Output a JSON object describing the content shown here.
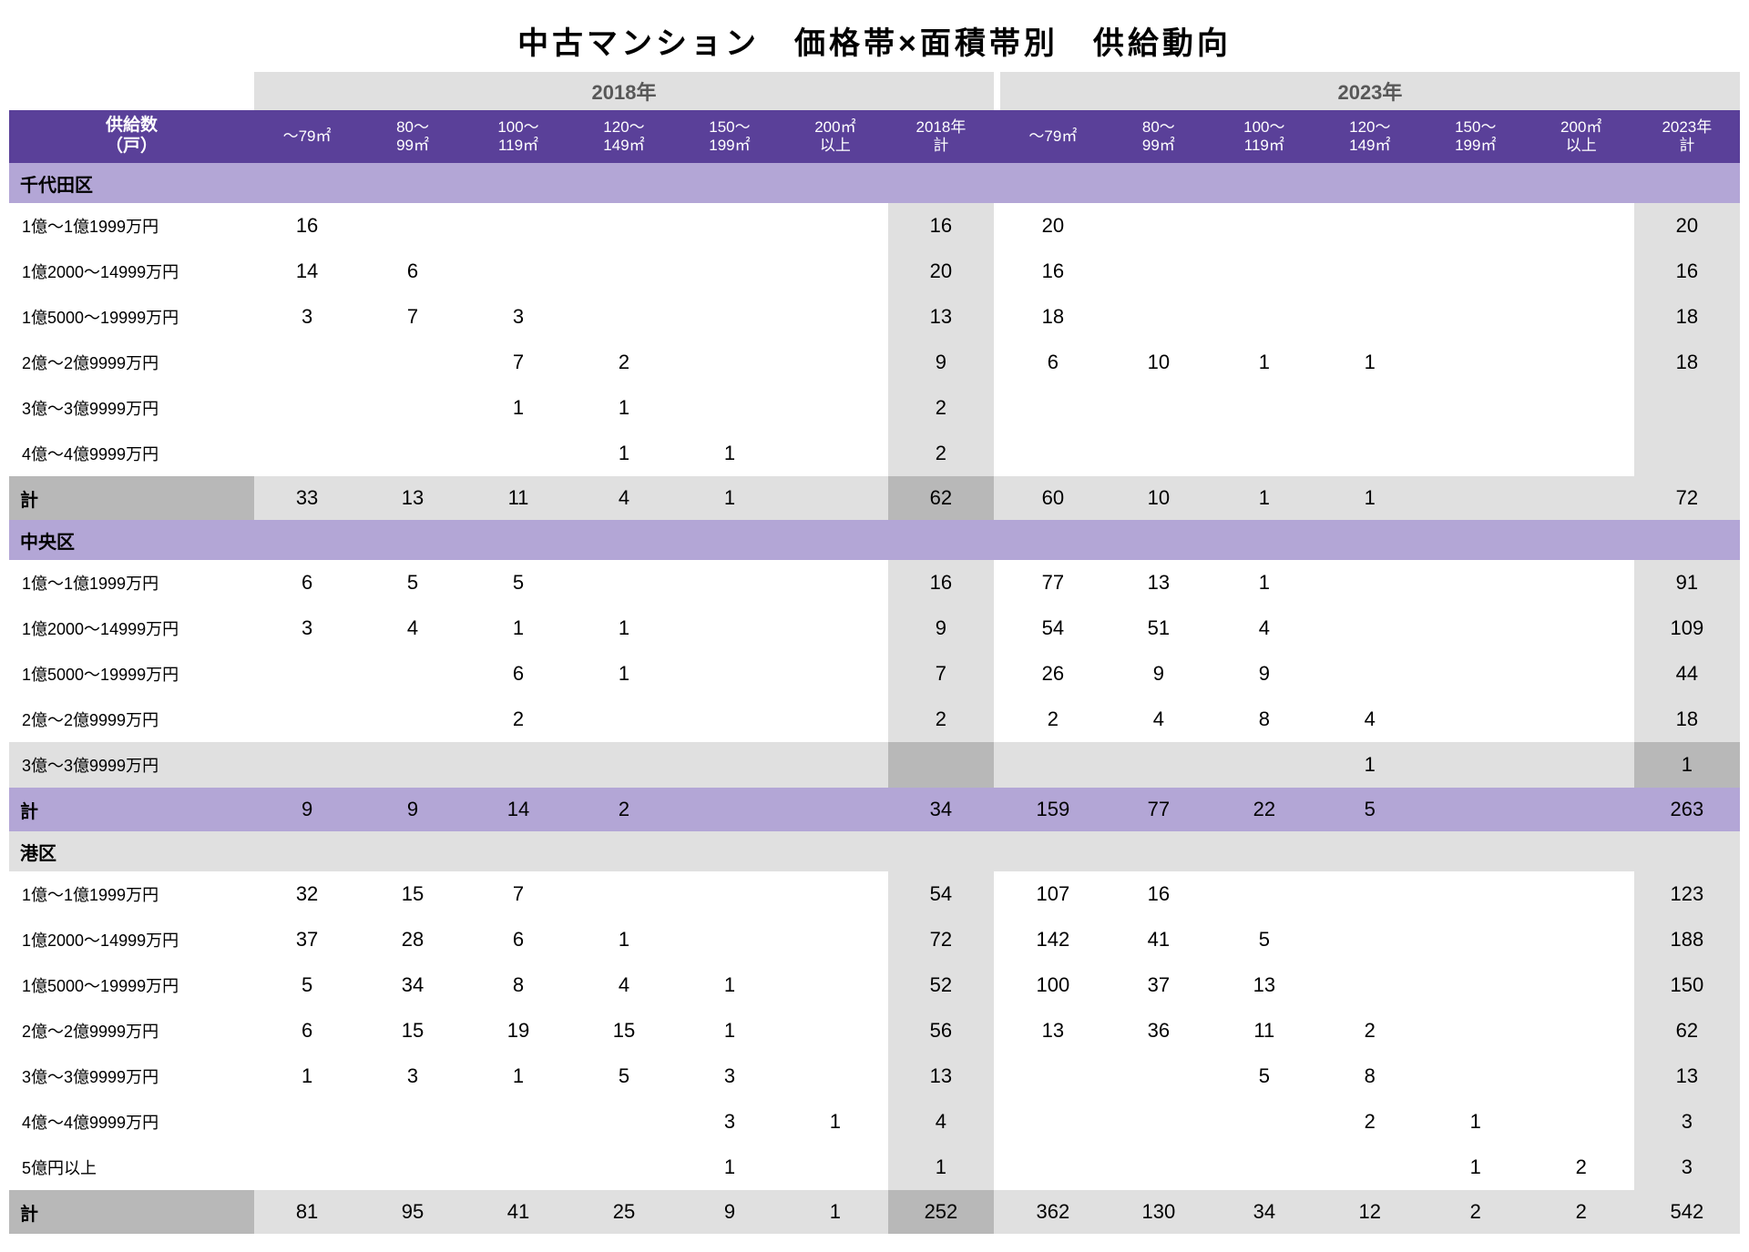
{
  "title": "中古マンション　価格帯×面積帯別　供給動向",
  "colors": {
    "header_bg": "#5a4099",
    "header_text": "#ffffff",
    "ward_bg": "#b3a6d6",
    "year_bg": "#e0e0e0",
    "subtotal_bg": "#e0e0e0",
    "total_label_bg": "#b8b8b8",
    "text": "#000000",
    "page_bg": "#ffffff"
  },
  "years": {
    "a": "2018年",
    "b": "2023年"
  },
  "header": {
    "label": "供給数\n（戸）",
    "cols_a": [
      "～79㎡",
      "80～\n99㎡",
      "100～\n119㎡",
      "120～\n149㎡",
      "150～\n199㎡",
      "200㎡\n以上",
      "2018年\n計"
    ],
    "cols_b": [
      "～79㎡",
      "80～\n99㎡",
      "100～\n119㎡",
      "120～\n149㎡",
      "150～\n199㎡",
      "200㎡\n以上",
      "2023年\n計"
    ]
  },
  "sections": [
    {
      "ward": "千代田区",
      "rows": [
        {
          "label": "1億～1億1999万円",
          "a": [
            "16",
            "",
            "",
            "",
            "",
            "",
            "16"
          ],
          "b": [
            "20",
            "",
            "",
            "",
            "",
            "",
            "20"
          ]
        },
        {
          "label": "1億2000～14999万円",
          "a": [
            "14",
            "6",
            "",
            "",
            "",
            "",
            "20"
          ],
          "b": [
            "16",
            "",
            "",
            "",
            "",
            "",
            "16"
          ]
        },
        {
          "label": "1億5000～19999万円",
          "a": [
            "3",
            "7",
            "3",
            "",
            "",
            "",
            "13"
          ],
          "b": [
            "18",
            "",
            "",
            "",
            "",
            "",
            "18"
          ]
        },
        {
          "label": "2億～2億9999万円",
          "a": [
            "",
            "",
            "7",
            "2",
            "",
            "",
            "9"
          ],
          "b": [
            "6",
            "10",
            "1",
            "1",
            "",
            "",
            "18"
          ]
        },
        {
          "label": "3億～3億9999万円",
          "a": [
            "",
            "",
            "1",
            "1",
            "",
            "",
            "2"
          ],
          "b": [
            "",
            "",
            "",
            "",
            "",
            "",
            ""
          ]
        },
        {
          "label": "4億～4億9999万円",
          "a": [
            "",
            "",
            "",
            "1",
            "1",
            "",
            "2"
          ],
          "b": [
            "",
            "",
            "",
            "",
            "",
            "",
            ""
          ]
        }
      ],
      "total_label": "計",
      "total": {
        "a": [
          "33",
          "13",
          "11",
          "4",
          "1",
          "",
          "62"
        ],
        "b": [
          "60",
          "10",
          "1",
          "1",
          "",
          "",
          "72"
        ]
      },
      "total_style": "gray"
    },
    {
      "ward": "中央区",
      "rows": [
        {
          "label": "1億～1億1999万円",
          "a": [
            "6",
            "5",
            "5",
            "",
            "",
            "",
            "16"
          ],
          "b": [
            "77",
            "13",
            "1",
            "",
            "",
            "",
            "91"
          ]
        },
        {
          "label": "1億2000～14999万円",
          "a": [
            "3",
            "4",
            "1",
            "1",
            "",
            "",
            "9"
          ],
          "b": [
            "54",
            "51",
            "4",
            "",
            "",
            "",
            "109"
          ]
        },
        {
          "label": "1億5000～19999万円",
          "a": [
            "",
            "",
            "6",
            "1",
            "",
            "",
            "7"
          ],
          "b": [
            "26",
            "9",
            "9",
            "",
            "",
            "",
            "44"
          ]
        },
        {
          "label": "2億～2億9999万円",
          "a": [
            "",
            "",
            "2",
            "",
            "",
            "",
            "2"
          ],
          "b": [
            "2",
            "4",
            "8",
            "4",
            "",
            "",
            "18"
          ]
        },
        {
          "label": "3億～3億9999万円",
          "shaded": true,
          "a": [
            "",
            "",
            "",
            "",
            "",
            "",
            ""
          ],
          "b": [
            "",
            "",
            "",
            "1",
            "",
            "",
            "1"
          ]
        }
      ],
      "total_label": "計",
      "total": {
        "a": [
          "9",
          "9",
          "14",
          "2",
          "",
          "",
          "34"
        ],
        "b": [
          "159",
          "77",
          "22",
          "5",
          "",
          "",
          "263"
        ]
      },
      "total_style": "purple"
    },
    {
      "ward": "港区",
      "ward_style": "gray",
      "rows": [
        {
          "label": "1億～1億1999万円",
          "a": [
            "32",
            "15",
            "7",
            "",
            "",
            "",
            "54"
          ],
          "b": [
            "107",
            "16",
            "",
            "",
            "",
            "",
            "123"
          ]
        },
        {
          "label": "1億2000～14999万円",
          "a": [
            "37",
            "28",
            "6",
            "1",
            "",
            "",
            "72"
          ],
          "b": [
            "142",
            "41",
            "5",
            "",
            "",
            "",
            "188"
          ]
        },
        {
          "label": "1億5000～19999万円",
          "a": [
            "5",
            "34",
            "8",
            "4",
            "1",
            "",
            "52"
          ],
          "b": [
            "100",
            "37",
            "13",
            "",
            "",
            "",
            "150"
          ]
        },
        {
          "label": "2億～2億9999万円",
          "a": [
            "6",
            "15",
            "19",
            "15",
            "1",
            "",
            "56"
          ],
          "b": [
            "13",
            "36",
            "11",
            "2",
            "",
            "",
            "62"
          ]
        },
        {
          "label": "3億～3億9999万円",
          "a": [
            "1",
            "3",
            "1",
            "5",
            "3",
            "",
            "13"
          ],
          "b": [
            "",
            "",
            "5",
            "8",
            "",
            "",
            "13"
          ]
        },
        {
          "label": "4億～4億9999万円",
          "a": [
            "",
            "",
            "",
            "",
            "3",
            "1",
            "4"
          ],
          "b": [
            "",
            "",
            "",
            "2",
            "1",
            "",
            "3"
          ]
        },
        {
          "label": "5億円以上",
          "a": [
            "",
            "",
            "",
            "",
            "1",
            "",
            "1"
          ],
          "b": [
            "",
            "",
            "",
            "",
            "1",
            "2",
            "3"
          ]
        }
      ],
      "total_label": "計",
      "total": {
        "a": [
          "81",
          "95",
          "41",
          "25",
          "9",
          "1",
          "252"
        ],
        "b": [
          "362",
          "130",
          "34",
          "12",
          "2",
          "2",
          "542"
        ]
      },
      "total_style": "gray"
    }
  ]
}
